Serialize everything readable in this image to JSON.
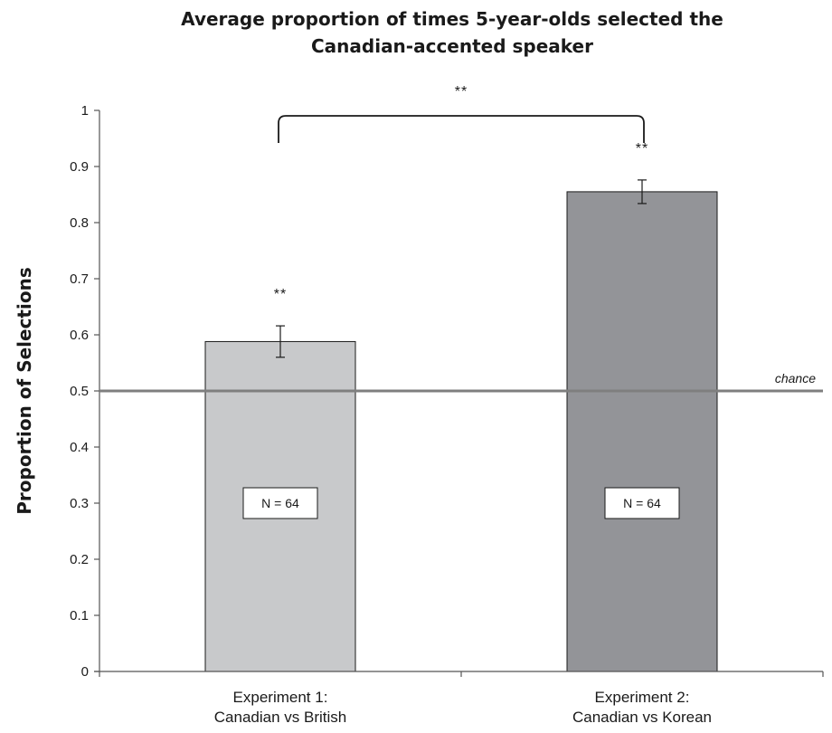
{
  "chart_data": {
    "type": "bar",
    "title_lines": [
      "Average proportion of times 5-year-olds selected the",
      "Canadian-accented speaker"
    ],
    "xlabel": "",
    "ylabel": "Proportion of Selections",
    "ylim": [
      0,
      1
    ],
    "yticks": [
      "0",
      "0.1",
      "0.2",
      "0.3",
      "0.4",
      "0.5",
      "0.6",
      "0.7",
      "0.8",
      "0.9",
      "1"
    ],
    "categories": [
      [
        "Experiment 1:",
        "Canadian vs British"
      ],
      [
        "Experiment 2:",
        "Canadian vs Korean"
      ]
    ],
    "values": [
      0.588,
      0.855
    ],
    "error": [
      0.028,
      0.021
    ],
    "bar_colors": [
      "#c8c9cb",
      "#939498"
    ],
    "bar_labels": [
      "N = 64",
      "N = 64"
    ],
    "significance": [
      "**",
      "**"
    ],
    "comparison_significance": "**",
    "reference_line": {
      "value": 0.5,
      "label": "chance",
      "color": "#7f7f7f"
    },
    "grid": false,
    "legend": "none"
  }
}
